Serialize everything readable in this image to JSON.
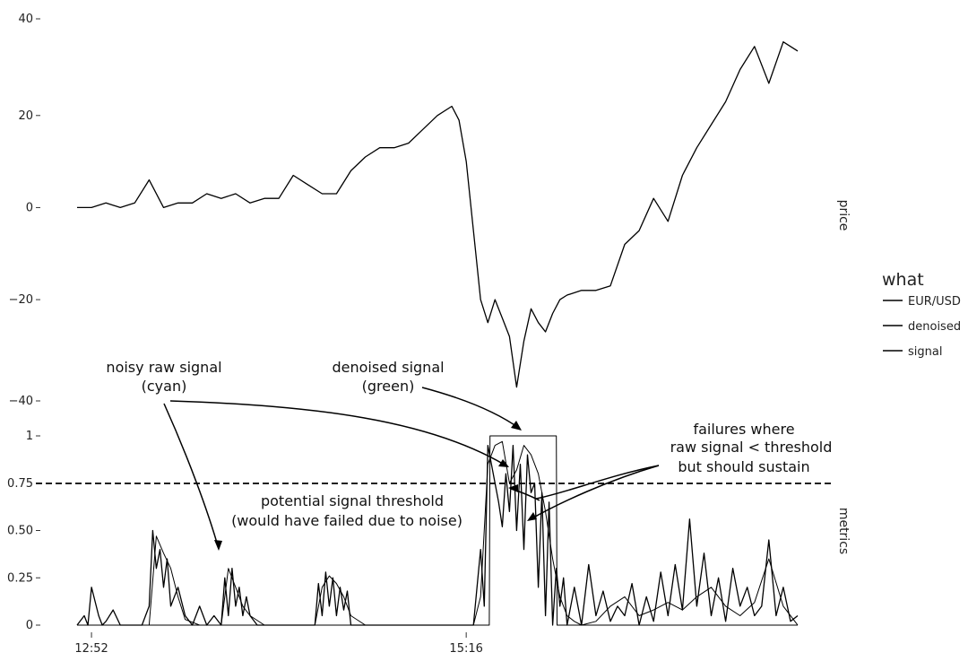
{
  "chart_data": {
    "type": "line",
    "legend": {
      "title": "what",
      "position": "right",
      "entries": [
        {
          "label": "EUR/USD"
        },
        {
          "label": "denoised"
        },
        {
          "label": "signal"
        }
      ]
    },
    "x_ticks": [
      "12:52",
      "15:16"
    ],
    "panels": [
      {
        "id": "price",
        "facet_label": "price",
        "ylim": [
          -42,
          41
        ],
        "y_ticks": [
          {
            "value": 40,
            "label": "40"
          },
          {
            "value": 20,
            "label": "20"
          },
          {
            "value": 0,
            "label": "0"
          },
          {
            "value": -20,
            "label": "−20"
          },
          {
            "value": -40,
            "label": "−40"
          }
        ],
        "series": [
          {
            "name": "EUR/USD",
            "x": [
              0,
              2,
              4,
              6,
              8,
              10,
              12,
              14,
              16,
              18,
              20,
              22,
              24,
              26,
              28,
              30,
              32,
              34,
              36,
              38,
              40,
              42,
              44,
              46,
              48,
              50,
              52,
              53,
              54,
              55,
              56,
              57,
              58,
              59,
              60,
              61,
              62,
              63,
              64,
              65,
              66,
              67,
              68,
              70,
              72,
              74,
              76,
              78,
              80,
              82,
              84,
              86,
              88,
              90,
              92,
              94,
              96,
              98,
              100
            ],
            "y": [
              0,
              0,
              1,
              0,
              1,
              6,
              0,
              1,
              1,
              3,
              2,
              3,
              1,
              2,
              2,
              7,
              5,
              3,
              3,
              8,
              11,
              13,
              13,
              14,
              17,
              20,
              22,
              19,
              10,
              -5,
              -20,
              -25,
              -20,
              -24,
              -28,
              -39,
              -29,
              -22,
              -25,
              -27,
              -23,
              -20,
              -19,
              -18,
              -18,
              -17,
              -8,
              -5,
              2,
              -3,
              7,
              13,
              18,
              23,
              30,
              35,
              27,
              36,
              34
            ]
          }
        ]
      },
      {
        "id": "metrics",
        "facet_label": "metrics",
        "ylim": [
          0,
          1
        ],
        "y_ticks": [
          {
            "value": 1,
            "label": "1"
          },
          {
            "value": 0.75,
            "label": "0.75"
          },
          {
            "value": 0.5,
            "label": "0.50"
          },
          {
            "value": 0.25,
            "label": "0.25"
          },
          {
            "value": 0,
            "label": "0"
          }
        ],
        "threshold": 0.75,
        "series": [
          {
            "name": "signal",
            "x": [
              0,
              57.2,
              57.3,
              66.5,
              66.6,
              100
            ],
            "y": [
              0,
              0,
              1,
              1,
              0,
              0
            ]
          },
          {
            "name": "denoised",
            "x": [
              0,
              10,
              11,
              12,
              13,
              14,
              15,
              17,
              20,
              21,
              22,
              23,
              24,
              26,
              30,
              33,
              34,
              35,
              36,
              37,
              38,
              40,
              55,
              56,
              57,
              58,
              59,
              60,
              61,
              62,
              63,
              64,
              65,
              66,
              67,
              68,
              69,
              70,
              72,
              74,
              76,
              78,
              80,
              82,
              84,
              86,
              88,
              90,
              92,
              94,
              96,
              98,
              100
            ],
            "y": [
              0,
              0,
              0.47,
              0.38,
              0.3,
              0.15,
              0.03,
              0,
              0,
              0.3,
              0.2,
              0.1,
              0.05,
              0,
              0,
              0,
              0.2,
              0.26,
              0.22,
              0.15,
              0.05,
              0,
              0,
              0.15,
              0.85,
              0.95,
              0.97,
              0.75,
              0.82,
              0.95,
              0.9,
              0.8,
              0.6,
              0.35,
              0.15,
              0.05,
              0.02,
              0,
              0.02,
              0.1,
              0.15,
              0.05,
              0.08,
              0.12,
              0.08,
              0.15,
              0.2,
              0.1,
              0.05,
              0.12,
              0.35,
              0.1,
              0
            ]
          },
          {
            "name": "EUR/USD",
            "x": [
              0,
              1,
              1.5,
              2,
              3,
              3.5,
              4,
              5,
              6,
              9,
              10,
              10.5,
              11,
              11.5,
              12,
              12.5,
              13,
              14,
              15,
              16,
              17,
              18,
              19,
              20,
              20.5,
              21,
              21.5,
              22,
              22.5,
              23,
              23.5,
              24,
              25,
              30,
              33,
              33.5,
              34,
              34.5,
              35,
              35.5,
              36,
              36.5,
              37,
              37.5,
              38,
              40,
              45,
              50,
              55,
              56,
              56.5,
              57,
              57.5,
              58,
              58.5,
              59,
              59.5,
              60,
              60.5,
              61,
              61.5,
              62,
              62.5,
              63,
              63.5,
              64,
              64.5,
              65,
              65.5,
              66,
              66.5,
              67,
              67.5,
              68,
              69,
              70,
              71,
              72,
              73,
              74,
              75,
              76,
              77,
              78,
              79,
              80,
              81,
              82,
              83,
              84,
              85,
              86,
              87,
              88,
              89,
              90,
              91,
              92,
              93,
              94,
              95,
              96,
              97,
              98,
              99,
              100
            ],
            "y": [
              0,
              0.05,
              0,
              0.2,
              0.05,
              0,
              0.02,
              0.08,
              0,
              0,
              0.1,
              0.5,
              0.3,
              0.4,
              0.2,
              0.35,
              0.1,
              0.2,
              0.05,
              0,
              0.1,
              0,
              0.05,
              0,
              0.25,
              0.05,
              0.3,
              0.1,
              0.2,
              0.05,
              0.15,
              0.05,
              0,
              0,
              0,
              0.22,
              0.05,
              0.28,
              0.1,
              0.25,
              0.05,
              0.2,
              0.08,
              0.18,
              0,
              0,
              0,
              0,
              0,
              0.4,
              0.1,
              0.95,
              0.85,
              0.75,
              0.65,
              0.52,
              0.8,
              0.6,
              0.95,
              0.5,
              0.85,
              0.4,
              0.9,
              0.7,
              0.75,
              0.2,
              0.7,
              0.05,
              0.65,
              0,
              0.3,
              0.1,
              0.25,
              0,
              0.2,
              0,
              0.32,
              0.05,
              0.18,
              0.02,
              0.1,
              0.05,
              0.22,
              0,
              0.15,
              0.02,
              0.28,
              0.05,
              0.32,
              0.08,
              0.56,
              0.1,
              0.38,
              0.05,
              0.25,
              0.02,
              0.3,
              0.1,
              0.2,
              0.05,
              0.1,
              0.45,
              0.05,
              0.2,
              0.02,
              0.05
            ]
          }
        ]
      }
    ],
    "annotations": [
      {
        "id": "noisy",
        "lines": [
          "noisy raw signal",
          "(cyan)"
        ]
      },
      {
        "id": "denoised",
        "lines": [
          "denoised signal",
          "(green)"
        ]
      },
      {
        "id": "failures",
        "lines": [
          "failures where",
          "raw signal < threshold",
          "but should sustain"
        ]
      },
      {
        "id": "threshold",
        "lines": [
          "potential signal threshold",
          "(would have failed due to noise)"
        ]
      }
    ]
  }
}
